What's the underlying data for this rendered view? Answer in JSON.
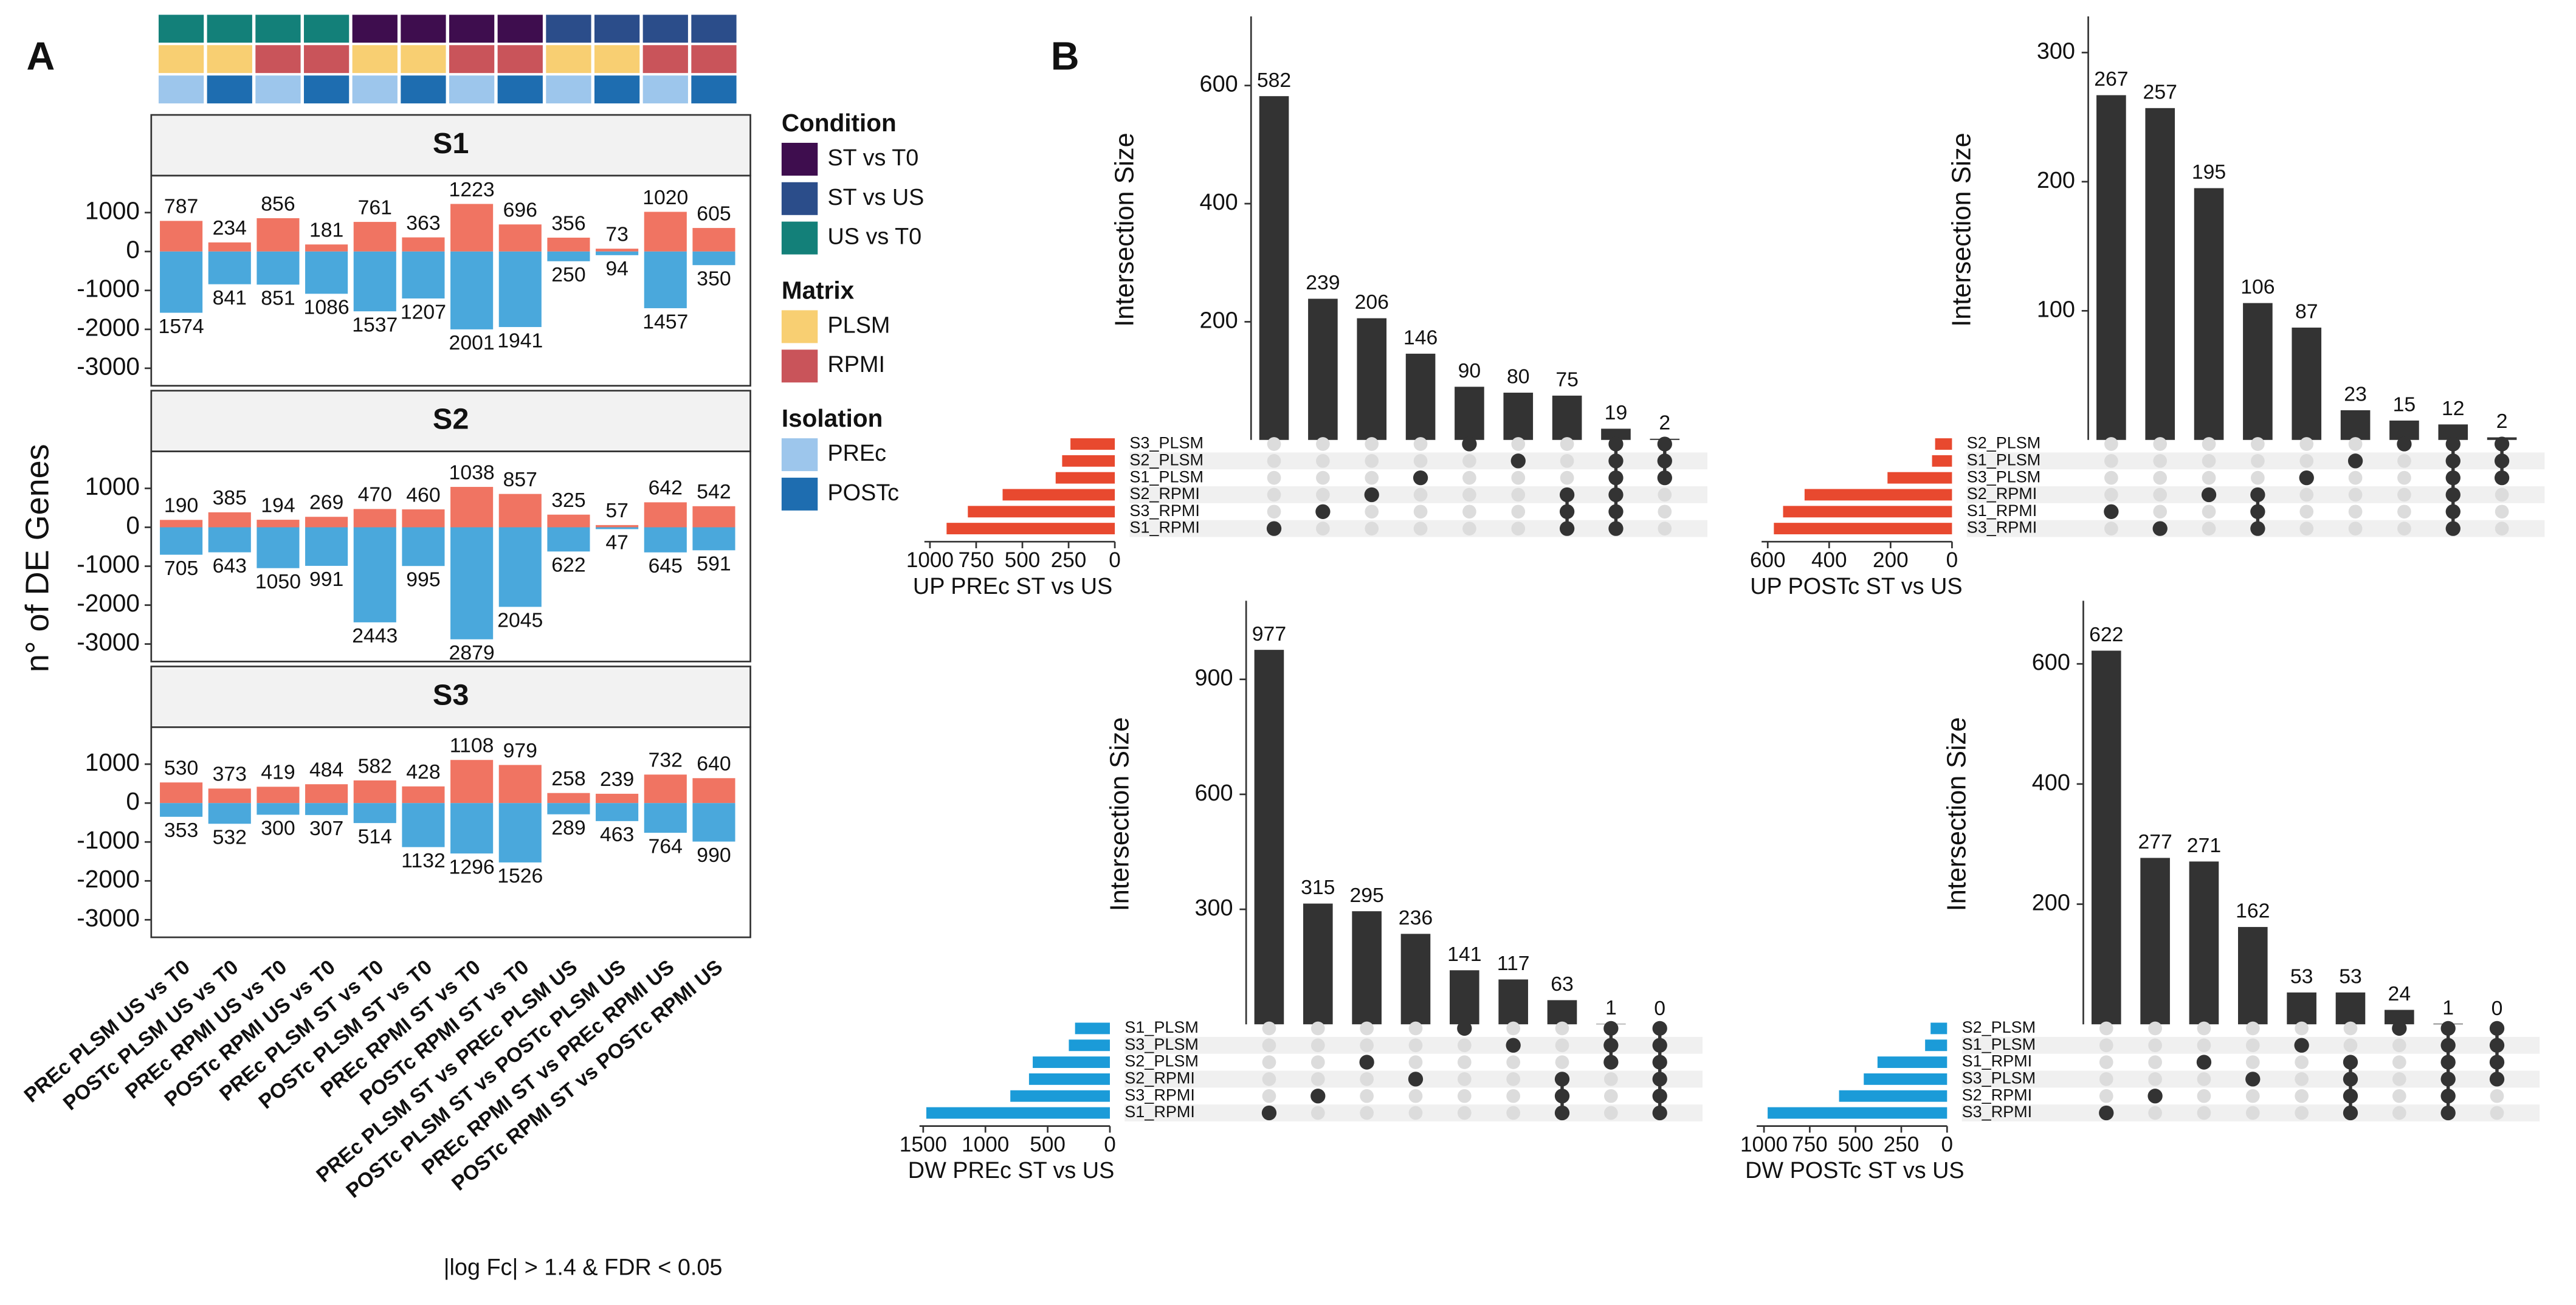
{
  "chart_data": [
    {
      "type": "bar",
      "panel_label": "A",
      "ylabel": "n° of DE Genes",
      "note": "|log Fc| > 1.4 & FDR < 0.05",
      "categories": [
        "PREc PLSM US vs T0",
        "POSTc PLSM US vs T0",
        "PREc RPMI US vs T0",
        "POSTc RPMI US vs T0",
        "PREc PLSM ST vs T0",
        "POSTc PLSM ST vs T0",
        "PREc RPMI ST vs T0",
        "POSTc RPMI ST vs T0",
        "PREc PLSM ST vs PREc PLSM US",
        "POSTc PLSM ST vs POSTc PLSM US",
        "PREc RPMI ST vs PREc RPMI US",
        "POSTc RPMI ST vs POSTc RPMI US"
      ],
      "tracks": [
        {
          "title": "Condition",
          "levels": [
            {
              "name": "ST vs T0",
              "color": "#3e0d4e"
            },
            {
              "name": "ST vs US",
              "color": "#2b4d8a"
            },
            {
              "name": "US vs T0",
              "color": "#138079"
            }
          ],
          "values": [
            "US vs T0",
            "US vs T0",
            "US vs T0",
            "US vs T0",
            "ST vs T0",
            "ST vs T0",
            "ST vs T0",
            "ST vs T0",
            "ST vs US",
            "ST vs US",
            "ST vs US",
            "ST vs US"
          ]
        },
        {
          "title": "Matrix",
          "levels": [
            {
              "name": "PLSM",
              "color": "#f8cf72"
            },
            {
              "name": "RPMI",
              "color": "#c9545a"
            }
          ],
          "values": [
            "PLSM",
            "PLSM",
            "RPMI",
            "RPMI",
            "PLSM",
            "PLSM",
            "RPMI",
            "RPMI",
            "PLSM",
            "PLSM",
            "RPMI",
            "RPMI"
          ]
        },
        {
          "title": "Isolation",
          "levels": [
            {
              "name": "PREc",
              "color": "#9dc6ec"
            },
            {
              "name": "POSTc",
              "color": "#1e6db0"
            }
          ],
          "values": [
            "PREc",
            "POSTc",
            "PREc",
            "POSTc",
            "PREc",
            "POSTc",
            "PREc",
            "POSTc",
            "PREc",
            "POSTc",
            "PREc",
            "POSTc"
          ]
        }
      ],
      "ylim": [
        -3450,
        1950
      ],
      "yticks": [
        1000,
        0,
        -1000,
        -2000,
        -3000
      ],
      "facets": [
        {
          "title": "S1",
          "series": [
            {
              "color": "#f07462",
              "values": [
                787,
                234,
                856,
                181,
                761,
                363,
                1223,
                696,
                356,
                73,
                1020,
                605
              ]
            },
            {
              "color": "#4aa8dc",
              "values": [
                -1574,
                -841,
                -851,
                -1086,
                -1537,
                -1207,
                -2001,
                -1941,
                -250,
                -94,
                -1457,
                -350
              ],
              "value_labels": [
                "1574",
                "841",
                "851",
                "1086",
                "1537",
                "1207",
                "2001",
                "1941",
                "250",
                "94",
                "1457",
                "350"
              ]
            }
          ]
        },
        {
          "title": "S2",
          "series": [
            {
              "color": "#f07462",
              "values": [
                190,
                385,
                194,
                269,
                470,
                460,
                1038,
                857,
                325,
                57,
                642,
                542
              ]
            },
            {
              "color": "#4aa8dc",
              "values": [
                -705,
                -643,
                -1050,
                -991,
                -2443,
                -995,
                -2879,
                -2045,
                -622,
                -47,
                -645,
                -591
              ],
              "value_labels": [
                "705",
                "643",
                "1050",
                "991",
                "2443",
                "995",
                "2879",
                "2045",
                "622",
                "47",
                "645",
                "591"
              ]
            }
          ]
        },
        {
          "title": "S3",
          "series": [
            {
              "color": "#f07462",
              "values": [
                530,
                373,
                419,
                484,
                582,
                428,
                1108,
                979,
                258,
                239,
                732,
                640
              ]
            },
            {
              "color": "#4aa8dc",
              "values": [
                -353,
                -532,
                -300,
                -307,
                -514,
                -1132,
                -1296,
                -1526,
                -289,
                -463,
                -764,
                -990
              ],
              "value_labels": [
                "353",
                "532",
                "300",
                "307",
                "514",
                "1132",
                "1296",
                "1526",
                "289",
                "463",
                "764",
                "990"
              ]
            }
          ]
        }
      ]
    },
    {
      "type": "upset",
      "panel_label": "B",
      "xlabel": "UP PREc ST vs US",
      "ylabel": "Intersection Size",
      "sets": [
        "S3_PLSM",
        "S2_PLSM",
        "S1_PLSM",
        "S2_RPMI",
        "S3_RPMI",
        "S1_RPMI"
      ],
      "set_sizes": [
        240,
        285,
        320,
        607,
        795,
        910
      ],
      "set_color": "#e8492f",
      "set_xlim": [
        0,
        1030
      ],
      "set_xticks": [
        1000,
        750,
        500,
        250,
        0
      ],
      "intersection_sizes": [
        582,
        239,
        206,
        146,
        90,
        80,
        75,
        19,
        2
      ],
      "color": "#333333",
      "intersection_members": [
        [
          5
        ],
        [
          4
        ],
        [
          3
        ],
        [
          2
        ],
        [
          0
        ],
        [
          1
        ],
        [
          3,
          4,
          5
        ],
        [
          0,
          1,
          2,
          3,
          4,
          5
        ],
        [
          0,
          1,
          2
        ]
      ],
      "ylim": [
        0,
        717
      ],
      "yticks": [
        200,
        400,
        600
      ]
    },
    {
      "type": "upset",
      "xlabel": "UP POSTc ST vs US",
      "ylabel": "Intersection Size",
      "sets": [
        "S2_PLSM",
        "S1_PLSM",
        "S3_PLSM",
        "S2_RPMI",
        "S1_RPMI",
        "S3_RPMI"
      ],
      "set_sizes": [
        55,
        65,
        210,
        480,
        550,
        580
      ],
      "set_color": "#e8492f",
      "set_xlim": [
        0,
        620
      ],
      "set_xticks": [
        600,
        400,
        200,
        0
      ],
      "intersection_sizes": [
        267,
        257,
        195,
        106,
        87,
        23,
        15,
        12,
        2
      ],
      "color": "#333333",
      "intersection_members": [
        [
          4
        ],
        [
          5
        ],
        [
          3
        ],
        [
          3,
          4,
          5
        ],
        [
          2
        ],
        [
          1
        ],
        [
          0
        ],
        [
          0,
          1,
          2,
          3,
          4,
          5
        ],
        [
          0,
          1,
          2
        ]
      ],
      "ylim": [
        0,
        328
      ],
      "yticks": [
        100,
        200,
        300
      ]
    },
    {
      "type": "upset",
      "xlabel": "DW PREc ST vs US",
      "ylabel": "Intersection Size",
      "sets": [
        "S1_PLSM",
        "S3_PLSM",
        "S2_PLSM",
        "S2_RPMI",
        "S3_RPMI",
        "S1_RPMI"
      ],
      "set_sizes": [
        280,
        330,
        620,
        650,
        800,
        1475
      ],
      "set_color": "#1b9bd8",
      "set_xlim": [
        0,
        1530
      ],
      "set_xticks": [
        1500,
        1000,
        500,
        0
      ],
      "intersection_sizes": [
        977,
        315,
        295,
        236,
        141,
        117,
        63,
        1,
        0
      ],
      "color": "#333333",
      "intersection_members": [
        [
          5
        ],
        [
          4
        ],
        [
          2
        ],
        [
          3
        ],
        [
          0
        ],
        [
          1
        ],
        [
          3,
          4,
          5
        ],
        [
          0,
          1,
          2
        ],
        [
          0,
          1,
          2,
          3,
          4,
          5
        ]
      ],
      "ylim": [
        0,
        1105
      ],
      "yticks": [
        300,
        600,
        900
      ]
    },
    {
      "type": "upset",
      "xlabel": "DW POSTc ST vs US",
      "ylabel": "Intersection Size",
      "sets": [
        "S2_PLSM",
        "S1_PLSM",
        "S1_RPMI",
        "S3_PLSM",
        "S2_RPMI",
        "S3_RPMI"
      ],
      "set_sizes": [
        90,
        120,
        380,
        455,
        590,
        980
      ],
      "set_color": "#1b9bd8",
      "set_xlim": [
        0,
        1040
      ],
      "set_xticks": [
        1000,
        750,
        500,
        250,
        0
      ],
      "intersection_sizes": [
        622,
        277,
        271,
        162,
        53,
        53,
        24,
        1,
        0
      ],
      "color": "#333333",
      "intersection_members": [
        [
          5
        ],
        [
          4
        ],
        [
          2
        ],
        [
          3
        ],
        [
          1
        ],
        [
          2,
          3,
          4,
          5
        ],
        [
          0
        ],
        [
          0,
          1,
          2,
          3,
          4,
          5
        ],
        [
          0,
          1,
          2,
          3
        ]
      ],
      "ylim": [
        0,
        705
      ],
      "yticks": [
        200,
        400,
        600
      ]
    }
  ]
}
